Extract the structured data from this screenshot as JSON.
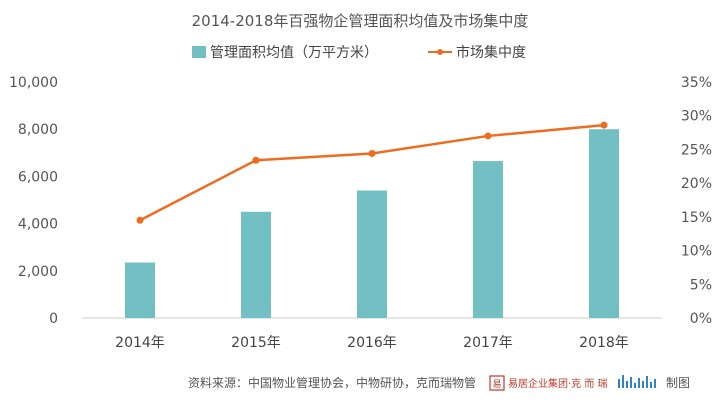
{
  "chart_data": {
    "type": "bar+line",
    "title": "2014-2018年百强物企管理面积均值及市场集中度",
    "categories": [
      "2014年",
      "2015年",
      "2016年",
      "2017年",
      "2018年"
    ],
    "series": [
      {
        "name": "管理面积均值（万平方米）",
        "type": "bar",
        "axis": "left",
        "color": "#72bfc4",
        "values": [
          2350,
          4500,
          5400,
          6650,
          8000
        ]
      },
      {
        "name": "市场集中度",
        "type": "line",
        "axis": "right",
        "color": "#ef6c1f",
        "values": [
          14.5,
          23.4,
          24.4,
          27.0,
          28.6
        ]
      }
    ],
    "ylim_left": [
      0,
      10000
    ],
    "yticks_left": [
      "0",
      "2,000",
      "4,000",
      "6,000",
      "8,000",
      "10,000"
    ],
    "ylim_right": [
      0,
      35
    ],
    "yticks_right": [
      "0%",
      "5%",
      "10%",
      "15%",
      "20%",
      "25%",
      "30%",
      "35%"
    ],
    "legend": "top",
    "grid": false
  },
  "footer": {
    "source": "资料来源：中国物业管理协会，中物研协，克而瑞物管",
    "brand_main": "易居企业集团·克 而 瑞",
    "brand_suffix": "制图"
  }
}
